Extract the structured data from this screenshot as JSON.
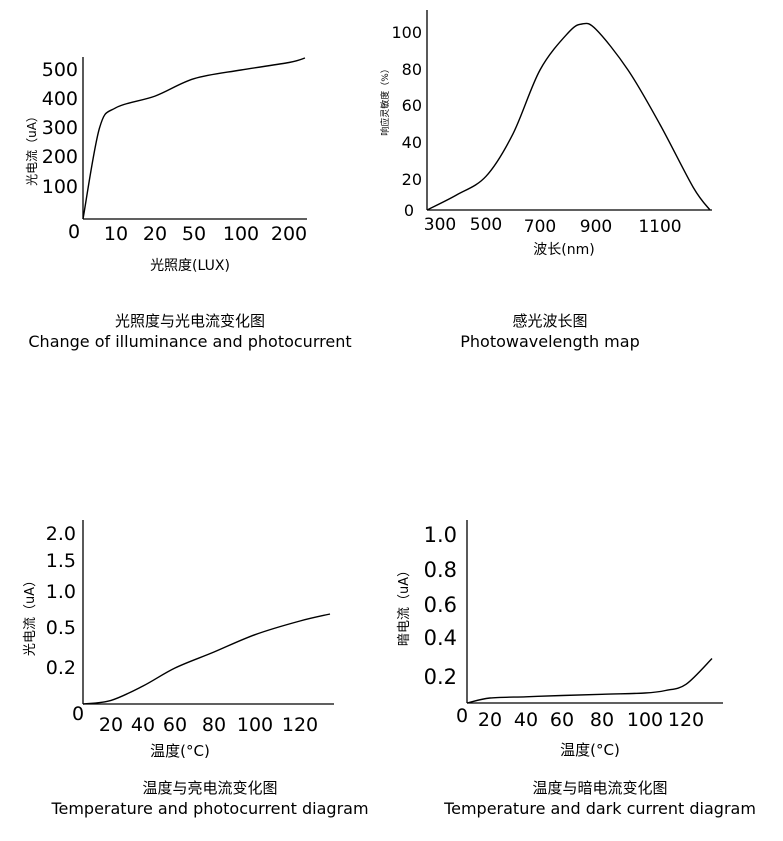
{
  "charts": [
    {
      "caption_cn": "光照度与光电流变化图",
      "caption_en": "Change of illuminance and photocurrent",
      "ylabel": "光电流（uA）",
      "xlabel": "光照度(LUX)",
      "x_ticks": [
        "0",
        "10",
        "20",
        "50",
        "100",
        "200"
      ],
      "y_ticks": [
        "100",
        "200",
        "300",
        "400",
        "500"
      ]
    },
    {
      "caption_cn": "感光波长图",
      "caption_en": "Photowavelength map",
      "ylabel": "响应灵敏度（%）",
      "xlabel": "波长(nm)",
      "x_ticks": [
        "300",
        "500",
        "700",
        "900",
        "1100"
      ],
      "y_ticks": [
        "0",
        "20",
        "40",
        "60",
        "80",
        "100"
      ]
    },
    {
      "caption_cn": "温度与亮电流变化图",
      "caption_en": "Temperature and photocurrent diagram",
      "ylabel": "光电流（uA）",
      "xlabel": "温度(°C)",
      "x_ticks": [
        "0",
        "20",
        "40",
        "60",
        "80",
        "100",
        "120"
      ],
      "y_ticks": [
        "0.2",
        "0.5",
        "1.0",
        "1.5",
        "2.0"
      ]
    },
    {
      "caption_cn": "温度与暗电流变化图",
      "caption_en": "Temperature and dark current diagram",
      "ylabel": "暗电流（uA）",
      "xlabel": "温度(°C)",
      "x_ticks": [
        "0",
        "20",
        "40",
        "60",
        "80",
        "100",
        "120"
      ],
      "y_ticks": [
        "0.2",
        "0.4",
        "0.6",
        "0.8",
        "1.0"
      ]
    }
  ],
  "chart_data": [
    {
      "type": "line",
      "xlabel": "光照度(LUX)",
      "ylabel": "光电流（uA）",
      "x_scale": "categorical-ticks",
      "x": [
        0,
        5,
        10,
        20,
        50,
        100,
        200,
        260
      ],
      "y": [
        0,
        300,
        370,
        410,
        470,
        500,
        525,
        540
      ],
      "ylim": [
        0,
        550
      ],
      "grid": false
    },
    {
      "type": "line",
      "xlabel": "波长(nm)",
      "ylabel": "响应灵敏度（%）",
      "x": [
        300,
        400,
        500,
        600,
        700,
        800,
        850,
        900,
        1000,
        1100,
        1200,
        1250
      ],
      "y": [
        0,
        10,
        22,
        45,
        80,
        100,
        105,
        102,
        80,
        50,
        15,
        0
      ],
      "xlim": [
        300,
        1250
      ],
      "ylim": [
        0,
        110
      ],
      "grid": false
    },
    {
      "type": "line",
      "xlabel": "温度(°C)",
      "ylabel": "光电流（uA）",
      "x": [
        0,
        20,
        40,
        60,
        80,
        100,
        120,
        130
      ],
      "y": [
        0,
        0.02,
        0.1,
        0.2,
        0.32,
        0.45,
        0.6,
        0.7
      ],
      "xlim": [
        0,
        130
      ],
      "grid": false
    },
    {
      "type": "line",
      "xlabel": "温度(°C)",
      "ylabel": "暗电流（uA）",
      "x": [
        0,
        20,
        40,
        60,
        80,
        100,
        110,
        120,
        130
      ],
      "y": [
        0,
        0.04,
        0.05,
        0.06,
        0.07,
        0.08,
        0.1,
        0.15,
        0.3
      ],
      "xlim": [
        0,
        130
      ],
      "ylim": [
        0,
        1.0
      ],
      "grid": false
    }
  ]
}
